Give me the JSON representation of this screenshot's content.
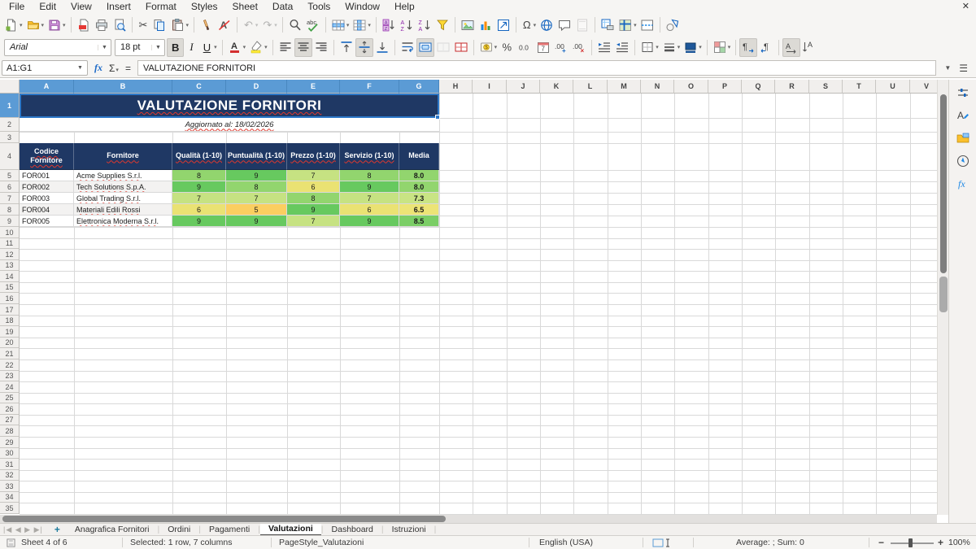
{
  "window": {
    "close_glyph": "✕"
  },
  "menu": {
    "items": [
      "File",
      "Edit",
      "View",
      "Insert",
      "Format",
      "Styles",
      "Sheet",
      "Data",
      "Tools",
      "Window",
      "Help"
    ]
  },
  "toolbars": {
    "standard": [
      {
        "name": "new-document-icon",
        "dropdown": true
      },
      {
        "name": "open-icon",
        "dropdown": true
      },
      {
        "name": "save-icon",
        "dropdown": true
      },
      {
        "sep": true
      },
      {
        "name": "export-pdf-icon"
      },
      {
        "name": "print-icon"
      },
      {
        "name": "print-preview-icon"
      },
      {
        "sep": true
      },
      {
        "name": "cut-icon",
        "glyph": "✂"
      },
      {
        "name": "copy-icon"
      },
      {
        "name": "paste-icon",
        "dropdown": true
      },
      {
        "sep": true
      },
      {
        "name": "clone-formatting-icon"
      },
      {
        "name": "clear-formatting-icon"
      },
      {
        "sep": true
      },
      {
        "name": "undo-icon",
        "glyph": "↶",
        "dropdown": true,
        "disabled": true
      },
      {
        "name": "redo-icon",
        "glyph": "↷",
        "dropdown": true,
        "disabled": true
      },
      {
        "sep": true
      },
      {
        "name": "find-replace-icon"
      },
      {
        "name": "spelling-icon"
      },
      {
        "sep": true
      },
      {
        "name": "row-icon",
        "dropdown": true
      },
      {
        "name": "column-icon",
        "dropdown": true
      },
      {
        "sep": true
      },
      {
        "name": "sort-icon"
      },
      {
        "name": "sort-ascending-icon"
      },
      {
        "name": "sort-descending-icon"
      },
      {
        "name": "autofilter-icon"
      },
      {
        "sep": true
      },
      {
        "name": "insert-image-icon"
      },
      {
        "name": "insert-chart-icon"
      },
      {
        "name": "insert-object-icon"
      },
      {
        "sep": true
      },
      {
        "name": "special-character-icon",
        "glyph": "Ω",
        "dropdown": true
      },
      {
        "name": "hyperlink-icon"
      },
      {
        "name": "comment-icon"
      },
      {
        "name": "headers-footers-icon",
        "disabled": true
      },
      {
        "sep": true
      },
      {
        "name": "print-area-icon"
      },
      {
        "name": "freeze-panes-icon",
        "dropdown": true
      },
      {
        "name": "split-window-icon"
      },
      {
        "sep": true
      },
      {
        "name": "draw-functions-icon"
      }
    ],
    "formatting": {
      "font_name": "Arial",
      "font_size": "18 pt",
      "buttons": [
        {
          "name": "bold-button",
          "glyph": "B",
          "kind": "bold",
          "active": true
        },
        {
          "name": "italic-button",
          "glyph": "I",
          "kind": "italic"
        },
        {
          "name": "underline-button",
          "glyph": "U",
          "kind": "under",
          "dropdown": true
        },
        {
          "sep": true
        },
        {
          "name": "font-color-icon",
          "dropdown": true
        },
        {
          "name": "highlight-color-icon",
          "dropdown": true
        },
        {
          "sep": true
        },
        {
          "name": "align-left-icon"
        },
        {
          "name": "align-center-icon",
          "active": true
        },
        {
          "name": "align-right-icon"
        },
        {
          "sep": true
        },
        {
          "name": "align-top-icon"
        },
        {
          "name": "center-vertically-icon",
          "active": true
        },
        {
          "name": "align-bottom-icon"
        },
        {
          "sep": true
        },
        {
          "name": "wrap-text-icon"
        },
        {
          "name": "merge-center-icon",
          "active": true
        },
        {
          "name": "merge-cells-icon",
          "disabled": true
        },
        {
          "name": "unmerge-cells-icon"
        },
        {
          "sep": true
        },
        {
          "name": "currency-icon",
          "dropdown": true
        },
        {
          "name": "percent-icon"
        },
        {
          "name": "number-format-icon"
        },
        {
          "name": "date-format-icon"
        },
        {
          "name": "add-decimal-icon"
        },
        {
          "name": "remove-decimal-icon"
        },
        {
          "sep": true
        },
        {
          "name": "increase-indent-icon"
        },
        {
          "name": "decrease-indent-icon"
        },
        {
          "sep": true
        },
        {
          "name": "borders-icon",
          "dropdown": true
        },
        {
          "name": "border-style-icon",
          "dropdown": true
        },
        {
          "name": "border-color-icon",
          "dropdown": true
        },
        {
          "sep": true
        },
        {
          "name": "conditional-formatting-icon",
          "dropdown": true
        },
        {
          "sep": true
        },
        {
          "name": "ltr-paragraph-icon",
          "active": true
        },
        {
          "name": "rtl-paragraph-icon"
        },
        {
          "sep": true
        },
        {
          "name": "text-horizontal-icon",
          "active": true
        },
        {
          "name": "text-vertical-icon"
        }
      ]
    }
  },
  "formula_bar": {
    "name_box": "A1:G1",
    "fx": "fx",
    "sum": "Σ",
    "equals": "=",
    "content": "VALUTAZIONE FORNITORI"
  },
  "sheet": {
    "title": "VALUTAZIONE FORNITORI",
    "subtitle": "Aggiornato al: 18/02/2026",
    "column_letters": [
      "A",
      "B",
      "C",
      "D",
      "E",
      "F",
      "G",
      "H",
      "I",
      "J",
      "K",
      "L",
      "M",
      "N",
      "O",
      "P",
      "Q",
      "R",
      "S",
      "T",
      "U",
      "V"
    ],
    "columns_selected": [
      "A",
      "B",
      "C",
      "D",
      "E",
      "F",
      "G"
    ],
    "rows_visible": 35,
    "selected_row": 1,
    "table": {
      "headers": [
        "Codice Fornitore",
        "Fornitore",
        "Qualità (1-10)",
        "Puntualità (1-10)",
        "Prezzo (1-10)",
        "Servizio (1-10)",
        "Media"
      ],
      "rows": [
        {
          "code": "FOR001",
          "name": "Acme Supplies S.r.l.",
          "scores": [
            "8",
            "9",
            "7",
            "8"
          ],
          "media": "8.0"
        },
        {
          "code": "FOR002",
          "name": "Tech Solutions S.p.A.",
          "scores": [
            "9",
            "8",
            "6",
            "9"
          ],
          "media": "8.0"
        },
        {
          "code": "FOR003",
          "name": "Global Trading S.r.l.",
          "scores": [
            "7",
            "7",
            "8",
            "7"
          ],
          "media": "7.3"
        },
        {
          "code": "FOR004",
          "name": "Materiali Edili Rossi",
          "scores": [
            "6",
            "5",
            "9",
            "6"
          ],
          "media": "6.5"
        },
        {
          "code": "FOR005",
          "name": "Elettronica Moderna S.r.l.",
          "scores": [
            "9",
            "9",
            "7",
            "9"
          ],
          "media": "8.5"
        }
      ]
    },
    "colors": {
      "header_navy": "#1F3864",
      "selection_blue": "#5B9BD5",
      "score_colors": {
        "5": "#FBCE60",
        "6": "#EAE273",
        "7": "#C6E282",
        "8": "#92D56E",
        "9": "#67C95F"
      },
      "media_colors": [
        "#92D56E",
        "#92D56E",
        "#C9E484",
        "#ECE476",
        "#7BCE66"
      ]
    }
  },
  "sheet_tabs": {
    "nav_glyphs": [
      "|◀",
      "◀",
      "▶",
      "▶|"
    ],
    "add_label": "+",
    "tabs": [
      {
        "label": "Anagrafica Fornitori",
        "active": false
      },
      {
        "label": "Ordini",
        "active": false
      },
      {
        "label": "Pagamenti",
        "active": false
      },
      {
        "label": "Valutazioni",
        "active": true
      },
      {
        "label": "Dashboard",
        "active": false
      },
      {
        "label": "Istruzioni",
        "active": false
      }
    ]
  },
  "status_bar": {
    "sheet_info": "Sheet 4 of 6",
    "selection_info": "Selected: 1 row, 7 columns",
    "page_style": "PageStyle_Valutazioni",
    "language": "English (USA)",
    "average_sum": "Average: ; Sum: 0",
    "zoom_level": "100%",
    "zoom_minus": "−",
    "zoom_plus": "+"
  },
  "sidebar": {
    "icons": [
      "properties-icon",
      "styles-icon",
      "gallery-icon",
      "navigator-icon",
      "functions-icon"
    ]
  }
}
